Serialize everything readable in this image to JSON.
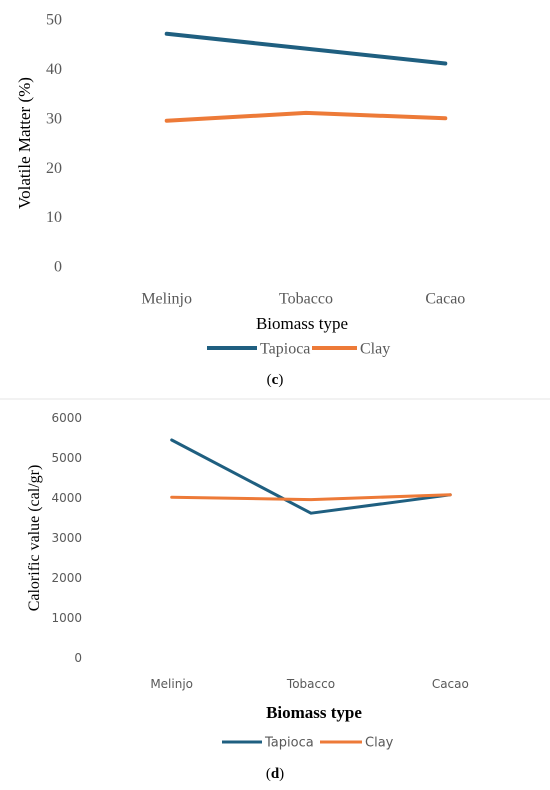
{
  "chart_data": [
    {
      "type": "line",
      "panel_label": "(c)",
      "panel_label_parts": [
        "(",
        "c",
        ")"
      ],
      "categories": [
        "Melinjo",
        "Tobacco",
        "Cacao"
      ],
      "series": [
        {
          "name": "Tapioca",
          "color": "#1f5f80",
          "values": [
            47,
            44,
            41
          ]
        },
        {
          "name": "Clay",
          "color": "#ed7a38",
          "values": [
            29.4,
            31,
            29.9
          ]
        }
      ],
      "xlabel": "Biomass type",
      "ylabel": "Volatile Matter (%)",
      "ylim": [
        0,
        50
      ],
      "yticks": [
        "0",
        "10",
        "20",
        "30",
        "40",
        "50"
      ],
      "grid": false,
      "legend": "bottom"
    },
    {
      "type": "line",
      "panel_label": "(d)",
      "panel_label_parts": [
        "(",
        "d",
        ")"
      ],
      "categories": [
        "Melinjo",
        "Tobacco",
        "Cacao"
      ],
      "series": [
        {
          "name": "Tapioca",
          "color": "#1f5f80",
          "values": [
            5450,
            3620,
            4080
          ]
        },
        {
          "name": "Clay",
          "color": "#ed7a38",
          "values": [
            4020,
            3960,
            4080
          ]
        }
      ],
      "xlabel": "Biomass type",
      "ylabel": "Calorific value (cal/gr)",
      "ylim": [
        0,
        6000
      ],
      "yticks": [
        "0",
        "1000",
        "2000",
        "3000",
        "4000",
        "5000",
        "6000"
      ],
      "grid": false,
      "legend": "bottom"
    }
  ]
}
